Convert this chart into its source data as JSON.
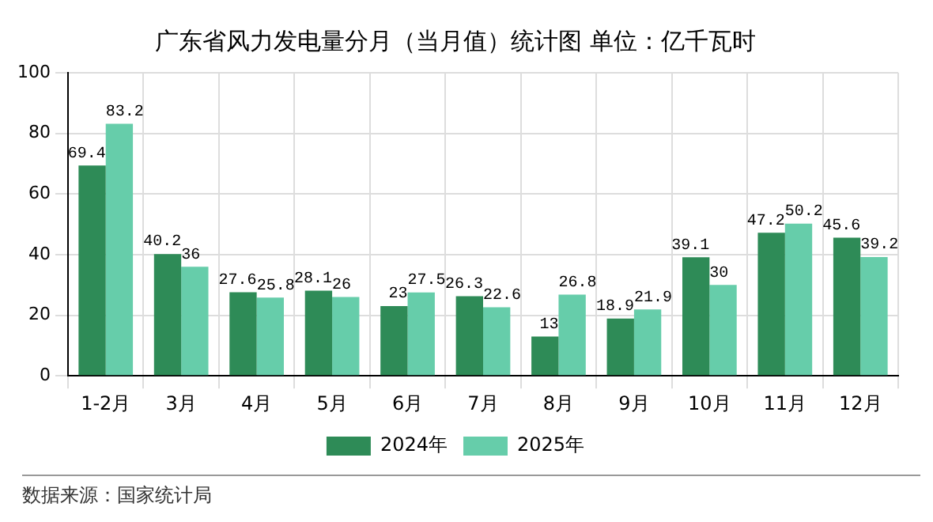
{
  "chart_data": {
    "type": "bar",
    "title": "广东省风力发电量分月（当月值）统计图 单位：亿千瓦时",
    "categories": [
      "1-2月",
      "3月",
      "4月",
      "5月",
      "6月",
      "7月",
      "8月",
      "9月",
      "10月",
      "11月",
      "12月"
    ],
    "series": [
      {
        "name": "2024年",
        "color": "#2e8b57",
        "values": [
          69.4,
          40.2,
          27.6,
          28.1,
          23,
          26.3,
          13,
          18.9,
          39.1,
          47.2,
          45.6
        ]
      },
      {
        "name": "2025年",
        "color": "#66cdaa",
        "values": [
          83.2,
          36,
          25.8,
          26,
          27.5,
          22.6,
          26.8,
          21.9,
          30,
          50.2,
          39.2
        ]
      }
    ],
    "ylim": [
      0,
      100
    ],
    "yticks": [
      0,
      20,
      40,
      60,
      80,
      100
    ],
    "grid": true,
    "legend": "bottom",
    "data_labels": true,
    "annotations": [
      "数据来源：国家统计局"
    ]
  }
}
